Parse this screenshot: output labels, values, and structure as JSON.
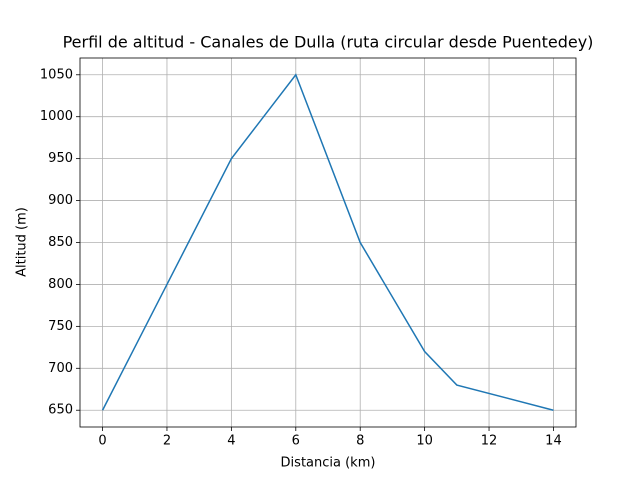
{
  "chart_data": {
    "type": "line",
    "title": "Perfil de altitud - Canales de Dulla (ruta circular desde Puentedey)",
    "x_label": "Distancia (km)",
    "y_label": "Altitud (m)",
    "x": [
      0,
      2,
      4,
      6,
      8,
      10,
      11,
      14
    ],
    "series": [
      {
        "name": "Altitud",
        "color": "#1f77b4",
        "values": [
          650,
          800,
          950,
          1050,
          850,
          720,
          680,
          650
        ]
      }
    ],
    "xlim": [
      -0.7,
      14.7
    ],
    "ylim": [
      630,
      1070
    ],
    "xticks": [
      0,
      2,
      4,
      6,
      8,
      10,
      12,
      14
    ],
    "yticks": [
      650,
      700,
      750,
      800,
      850,
      900,
      950,
      1000,
      1050
    ],
    "grid": true
  }
}
